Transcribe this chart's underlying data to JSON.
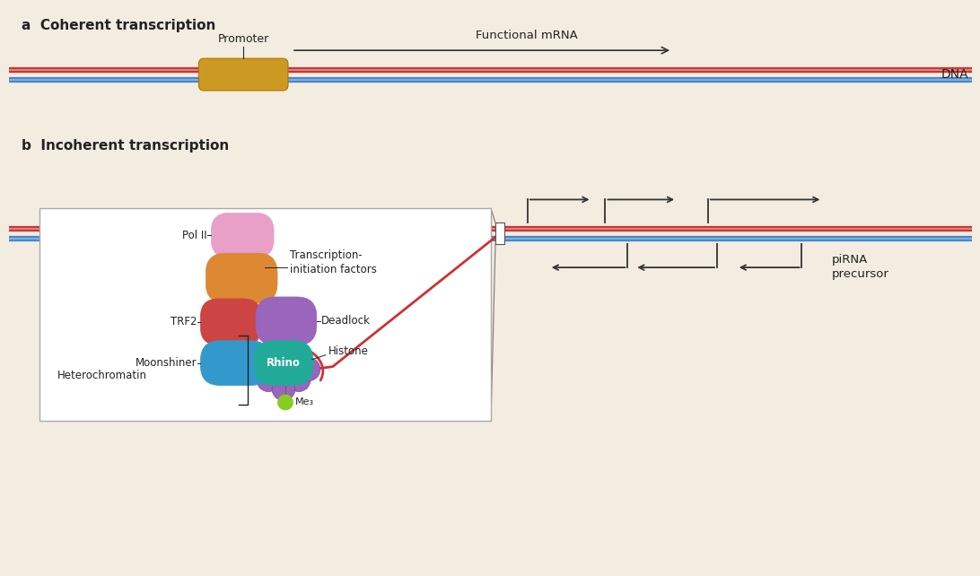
{
  "bg_color": "#f2ede0",
  "panel_a_title": "a  Coherent transcription",
  "panel_b_title": "b  Incoherent transcription",
  "dna_red": "#cc3333",
  "dna_blue": "#4488cc",
  "dna_red_light": "#e08080",
  "dna_blue_light": "#88aadd",
  "promoter_color": "#cc9922",
  "pol2_color": "#e8a0c8",
  "trf2_color": "#cc4444",
  "moonshiner_color": "#3399cc",
  "deadlock_color": "#9966bb",
  "rhino_color": "#22aa99",
  "orange_color": "#dd8833",
  "me3_color": "#88cc22",
  "histone_color": "#9966bb",
  "text_color": "#222222",
  "arrow_color": "#333333",
  "pirna_label": "piRNA\nprecursor",
  "dna_lw": 4.5,
  "dna_lw_inner": 1.5
}
